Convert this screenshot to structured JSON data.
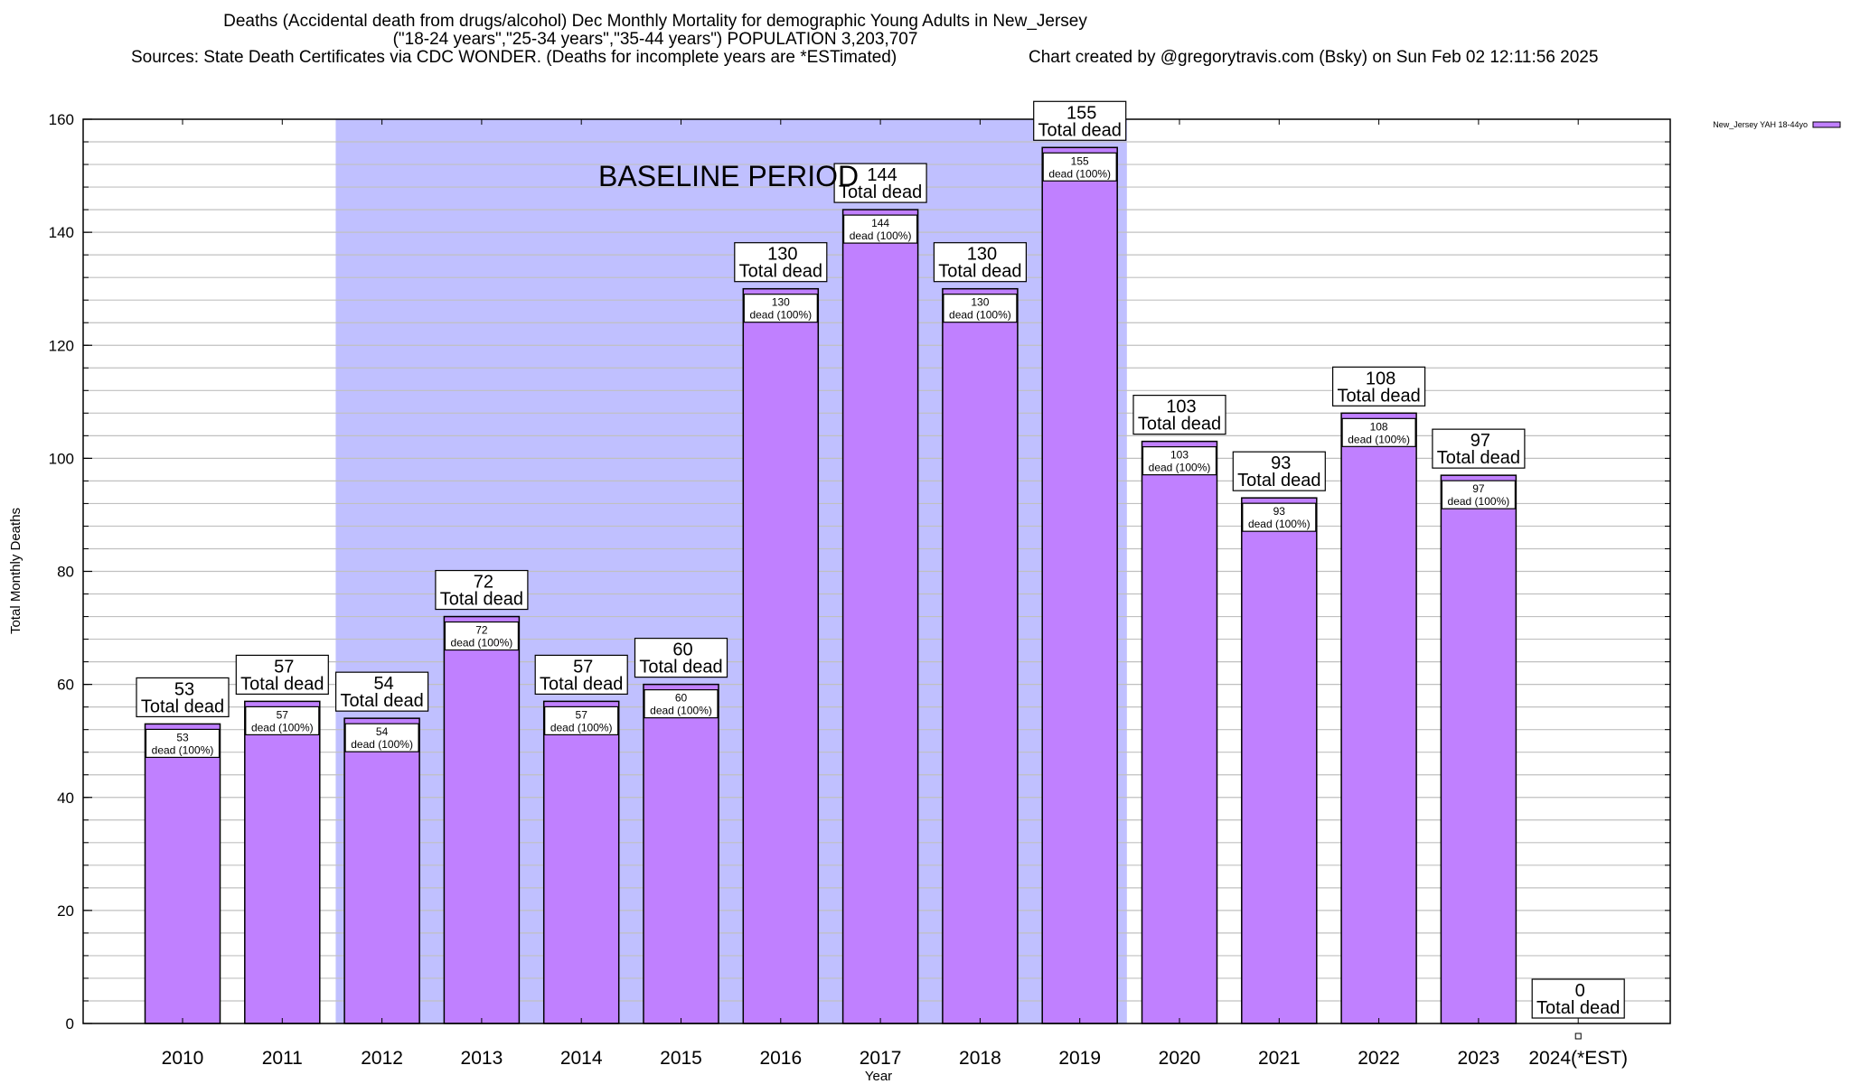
{
  "header": {
    "title_line1": "Deaths (Accidental death from drugs/alcohol) Dec Monthly Mortality for demographic Young Adults in New_Jersey",
    "title_line2": "(\"18-24 years\",\"25-34 years\",\"35-44 years\") POPULATION 3,203,707",
    "sources": "Sources: State Death Certificates via CDC WONDER. (Deaths for incomplete years are *ESTimated)",
    "credit": "Chart created by @gregorytravis.com (Bsky) on Sun Feb 02 12:11:56 2025"
  },
  "chart_data": {
    "type": "bar",
    "title": "Deaths (Accidental death from drugs/alcohol) Dec Monthly Mortality for demographic Young Adults in New_Jersey",
    "xlabel": "Year",
    "ylabel": "Total Monthly Deaths",
    "ylim": [
      0,
      160
    ],
    "yticks": [
      0,
      20,
      40,
      60,
      80,
      100,
      120,
      140,
      160
    ],
    "yminor_step": 4,
    "grid": true,
    "categories": [
      "2010",
      "2011",
      "2012",
      "2013",
      "2014",
      "2015",
      "2016",
      "2017",
      "2018",
      "2019",
      "2020",
      "2021",
      "2022",
      "2023",
      "2024(*EST)"
    ],
    "series": [
      {
        "name": "New_Jersey YAH 18-44yo",
        "color": "#c080ff",
        "values": [
          53,
          57,
          54,
          72,
          57,
          60,
          130,
          144,
          130,
          155,
          103,
          93,
          108,
          97,
          0
        ]
      }
    ],
    "total_label_suffix": "Total dead",
    "inner_label_suffix": "dead (100%)",
    "legend": {
      "label": "New_Jersey YAH 18-44yo",
      "position": "top-right"
    },
    "annotation": {
      "text": "BASELINE PERIOD",
      "start_category": "2012",
      "end_category": "2019",
      "color": "#c0c0ff"
    }
  }
}
